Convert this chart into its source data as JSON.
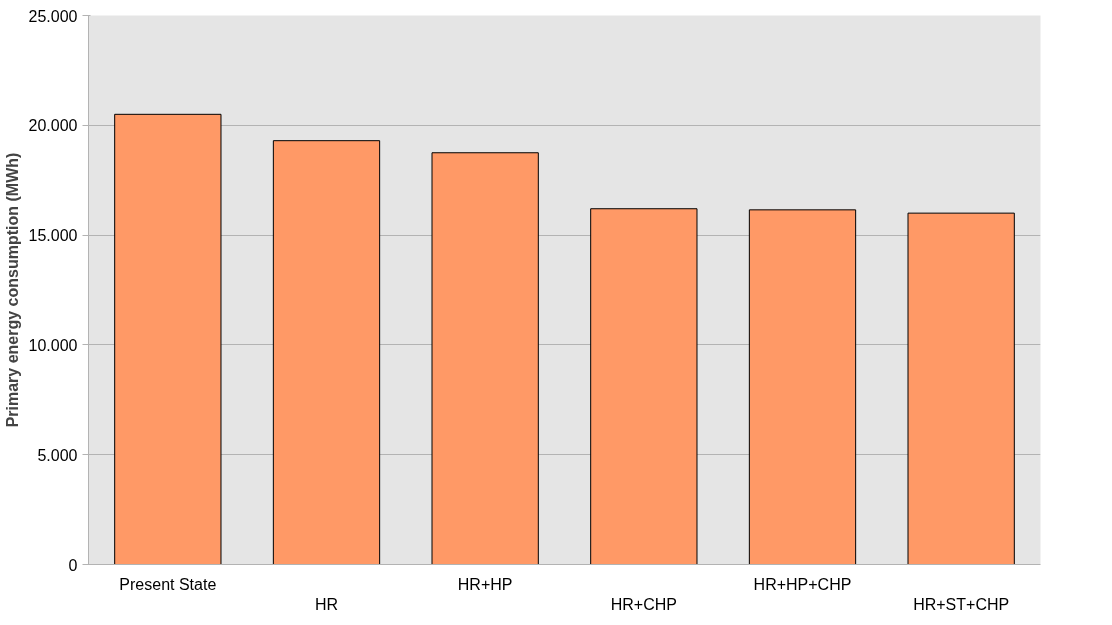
{
  "chart_data": {
    "type": "bar",
    "ylabel": "Primary energy consumption (MWh)",
    "categories": [
      "Present State",
      "HR",
      "HR+HP",
      "HR+CHP",
      "HR+HP+CHP",
      "HR+ST+CHP"
    ],
    "values": [
      20500,
      19300,
      18750,
      16200,
      16150,
      16000
    ],
    "color": "#ff9966",
    "ylim": [
      0,
      25000
    ],
    "yticks": [
      {
        "value": 0,
        "label": "0"
      },
      {
        "value": 5000,
        "label": "5.000"
      },
      {
        "value": 10000,
        "label": "10.000"
      },
      {
        "value": 15000,
        "label": "15.000"
      },
      {
        "value": 20000,
        "label": "20.000"
      },
      {
        "value": 25000,
        "label": "25.000"
      }
    ],
    "grid": "y"
  }
}
